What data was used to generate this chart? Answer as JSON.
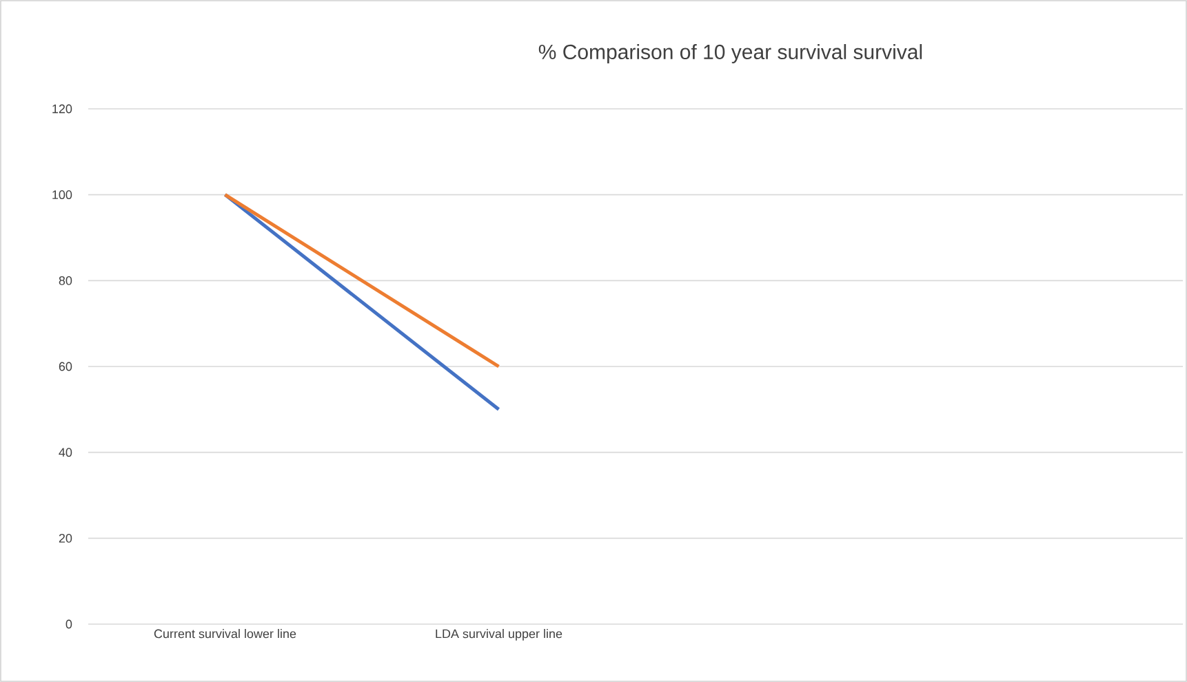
{
  "chart_data": {
    "type": "line",
    "title": "% Comparison of 10 year survival survival",
    "categories": [
      "Current survival lower line",
      "LDA survival upper line",
      null,
      null
    ],
    "series": [
      {
        "color": "#4472c4",
        "values": [
          100,
          50,
          null,
          null
        ]
      },
      {
        "color": "#ed7d31",
        "values": [
          100,
          60,
          null,
          null
        ]
      }
    ],
    "ylim": [
      0,
      120
    ],
    "yticks": [
      0,
      20,
      40,
      60,
      80,
      100,
      120
    ],
    "grid": "y",
    "marker": "none",
    "line_style": "solid"
  }
}
